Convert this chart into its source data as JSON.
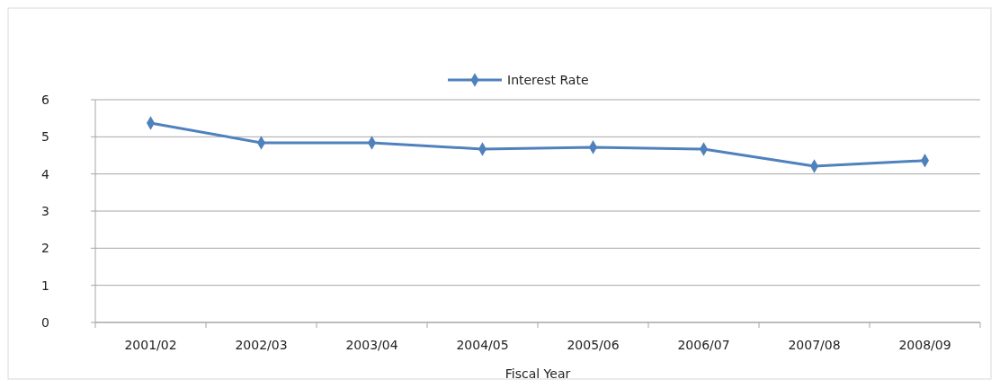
{
  "chart_data": {
    "type": "line",
    "xlabel": "Fiscal Year",
    "categories": [
      "2001/02",
      "2002/03",
      "2003/04",
      "2004/05",
      "2005/06",
      "2006/07",
      "2007/08",
      "2008/09"
    ],
    "series": [
      {
        "name": "Interest Rate",
        "color": "#4f81bd",
        "values": [
          5.37,
          4.84,
          4.84,
          4.67,
          4.72,
          4.67,
          4.21,
          4.36
        ]
      }
    ],
    "ylim": [
      0,
      6
    ],
    "yticks": [
      0,
      1,
      2,
      3,
      4,
      5,
      6
    ],
    "grid": "y",
    "legend": "top",
    "marker": "diamond",
    "line_style": "solid"
  }
}
